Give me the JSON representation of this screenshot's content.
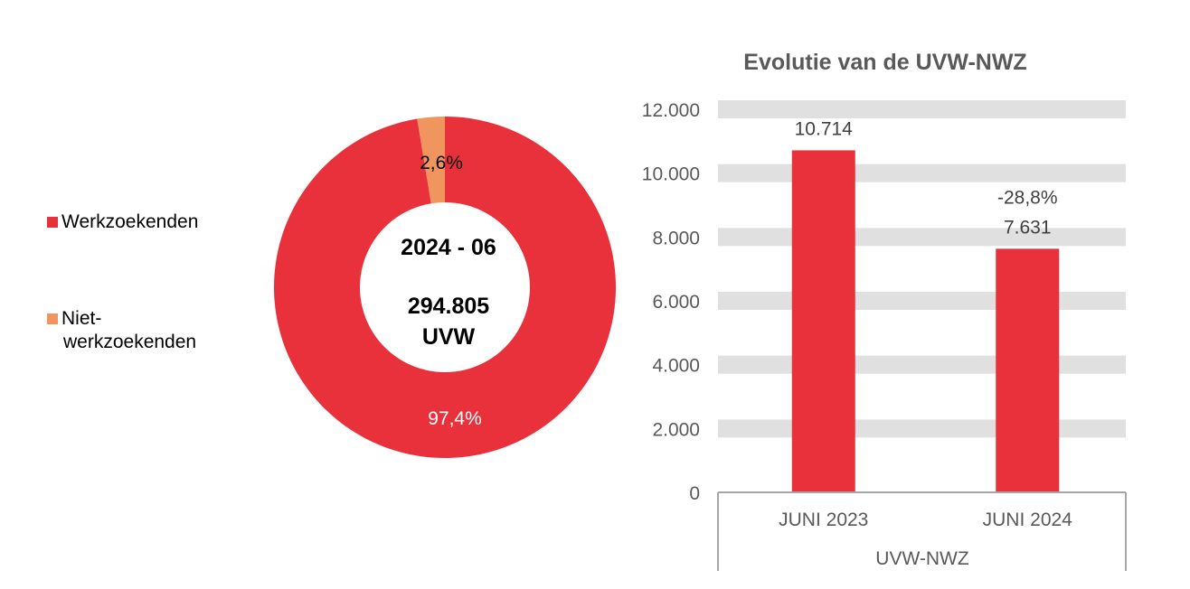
{
  "chart_data": [
    {
      "type": "pie",
      "variant": "donut",
      "center_text": {
        "period": "2024 - 06",
        "total": "294.805",
        "unit": "UVW"
      },
      "legend": {
        "placement": "left"
      },
      "slices": [
        {
          "name": "Werkzoekenden",
          "value": 97.4,
          "label": "97,4%",
          "color": "#e8313a",
          "label_color": "#ffffff"
        },
        {
          "name": "Niet-werkzoekenden",
          "legend_lines": [
            "Niet-",
            "werkzoekenden"
          ],
          "value": 2.6,
          "label": "2,6%",
          "color": "#f0955e",
          "label_color": "#000000"
        }
      ]
    },
    {
      "type": "bar",
      "title": "Evolutie van de UVW-NWZ",
      "categories": [
        "JUNI 2023",
        "JUNI 2024"
      ],
      "group_label": "UVW-NWZ",
      "values": [
        10714,
        7631
      ],
      "data_labels": [
        "10.714",
        "7.631"
      ],
      "change_labels": [
        "",
        "-28,8%"
      ],
      "ylim": [
        0,
        12000
      ],
      "yticks": [
        0,
        2000,
        4000,
        6000,
        8000,
        10000,
        12000
      ],
      "ytick_labels": [
        "0",
        "2.000",
        "4.000",
        "6.000",
        "8.000",
        "10.000",
        "12.000"
      ],
      "grid": true,
      "bar_color": "#e8313a",
      "grid_color": "#e0e0e0"
    }
  ]
}
